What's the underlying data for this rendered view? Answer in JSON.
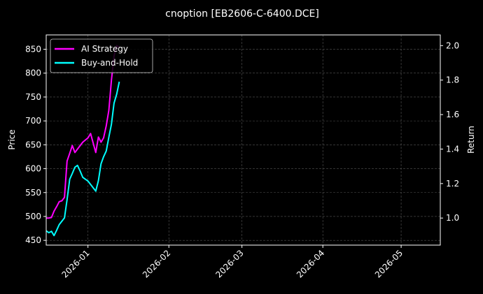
{
  "chart_data": {
    "type": "line",
    "title": "cnoption [EB2606-C-6400.DCE]",
    "ylabel": "Price",
    "y2label": "Return",
    "x_range": [
      "2025-12-16",
      "2026-05-16"
    ],
    "ylim": [
      440,
      880
    ],
    "y2lim": [
      0.843,
      2.062
    ],
    "yticks": [
      450,
      500,
      550,
      600,
      650,
      700,
      750,
      800,
      850
    ],
    "y2ticks": [
      1.0,
      1.2,
      1.4,
      1.6,
      1.8,
      2.0
    ],
    "xticks": [
      {
        "date": "2026-01-01",
        "label": "2026-01"
      },
      {
        "date": "2026-02-01",
        "label": "2026-02"
      },
      {
        "date": "2026-03-01",
        "label": "2026-03"
      },
      {
        "date": "2026-04-01",
        "label": "2026-04"
      },
      {
        "date": "2026-05-01",
        "label": "2026-05"
      }
    ],
    "grid": true,
    "legend_position": "upper-left",
    "background": "#000000",
    "series": [
      {
        "name": "AI Strategy",
        "color": "#ff00ff",
        "axis": "right",
        "x": [
          "2025-12-16",
          "2025-12-17",
          "2025-12-18",
          "2025-12-19",
          "2025-12-20",
          "2025-12-21",
          "2025-12-22",
          "2025-12-23",
          "2025-12-24",
          "2025-12-25",
          "2025-12-26",
          "2025-12-27",
          "2025-12-28",
          "2025-12-29",
          "2025-12-30",
          "2026-01-01",
          "2026-01-02",
          "2026-01-04",
          "2026-01-05",
          "2026-01-06",
          "2026-01-07",
          "2026-01-08",
          "2026-01-09",
          "2026-01-10",
          "2026-01-11",
          "2026-01-12",
          "2026-01-13"
        ],
        "values": [
          1.0,
          1.0,
          1.003,
          1.04,
          1.066,
          1.095,
          1.1,
          1.12,
          1.33,
          1.375,
          1.42,
          1.38,
          1.4,
          1.42,
          1.44,
          1.465,
          1.49,
          1.38,
          1.47,
          1.44,
          1.465,
          1.535,
          1.625,
          1.8,
          1.94,
          2.0,
          1.99
        ]
      },
      {
        "name": "Buy-and-Hold",
        "color": "#00ffff",
        "axis": "left",
        "x": [
          "2025-12-16",
          "2025-12-17",
          "2025-12-18",
          "2025-12-19",
          "2025-12-20",
          "2025-12-21",
          "2025-12-22",
          "2025-12-23",
          "2025-12-24",
          "2025-12-25",
          "2025-12-26",
          "2025-12-27",
          "2025-12-28",
          "2025-12-29",
          "2025-12-30",
          "2026-01-01",
          "2026-01-02",
          "2026-01-04",
          "2026-01-05",
          "2026-01-06",
          "2026-01-07",
          "2026-01-08",
          "2026-01-09",
          "2026-01-10",
          "2026-01-11",
          "2026-01-12",
          "2026-01-13"
        ],
        "values": [
          470,
          466,
          469,
          460,
          471,
          483,
          490,
          497,
          535,
          578,
          590,
          603,
          607,
          595,
          582,
          574,
          567,
          553,
          575,
          610,
          625,
          637,
          666,
          693,
          737,
          756,
          782
        ]
      }
    ]
  }
}
